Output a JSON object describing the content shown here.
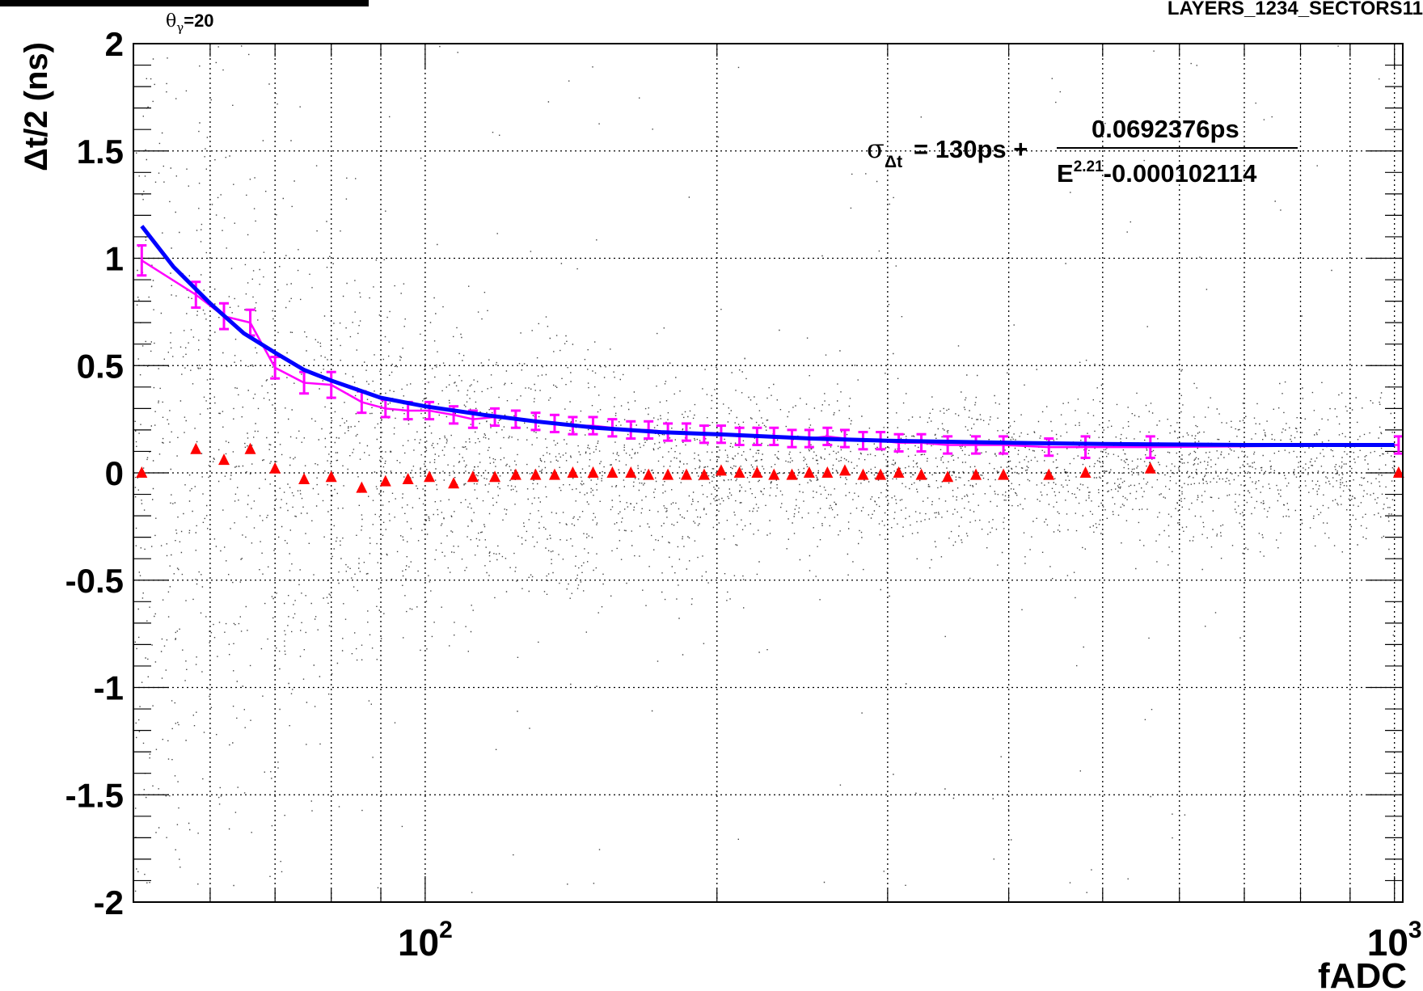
{
  "chart_data": {
    "type": "scatter",
    "header_left": "θγ=20",
    "header_right": "LAYERS_1234_SECTORS11",
    "xlabel": "fADC",
    "ylabel": "Δt/2 (ns)",
    "xscale": "log",
    "xlim": [
      50,
      1020
    ],
    "ylim": [
      -2,
      2
    ],
    "grid": true,
    "x_tick_labels": [
      {
        "base": "10",
        "exp": "2",
        "value": 100
      },
      {
        "base": "10",
        "exp": "3",
        "value": 1000
      }
    ],
    "y_ticks": [
      -2,
      -1.5,
      -1,
      -0.5,
      0,
      0.5,
      1,
      1.5,
      2
    ],
    "y_tick_labels": [
      "-2",
      "-1.5",
      "-1",
      "-0.5",
      "0",
      "0.5",
      "1",
      "1.5",
      "2"
    ],
    "formula": {
      "lhs": "σ",
      "lhs_sub": "Δt",
      "middle": "= 130ps +",
      "numerator": "0.0692376ps",
      "denominator_base": "E",
      "denominator_exp": "2.21",
      "denominator_rest": "-0.000102114"
    },
    "colors": {
      "sigma": "#ff00ff",
      "fit": "#0000ff",
      "mean": "#ff0000",
      "scatter": "#000000",
      "grid": "#000000"
    },
    "series": [
      {
        "style": "magenta error bars with connecting line",
        "x": [
          51,
          58,
          62,
          66,
          70,
          75,
          80,
          86,
          91,
          96,
          101,
          107,
          112,
          118,
          124,
          130,
          136,
          142,
          149,
          156,
          163,
          170,
          178,
          186,
          194,
          202,
          211,
          220,
          229,
          239,
          249,
          260,
          271,
          283,
          295,
          308,
          325,
          346,
          370,
          395,
          440,
          480,
          560,
          1010
        ],
        "y": [
          0.99,
          0.83,
          0.73,
          0.7,
          0.49,
          0.42,
          0.41,
          0.33,
          0.3,
          0.29,
          0.29,
          0.27,
          0.25,
          0.26,
          0.25,
          0.24,
          0.23,
          0.22,
          0.22,
          0.21,
          0.2,
          0.2,
          0.19,
          0.19,
          0.18,
          0.18,
          0.17,
          0.17,
          0.17,
          0.16,
          0.16,
          0.17,
          0.16,
          0.15,
          0.15,
          0.14,
          0.14,
          0.13,
          0.13,
          0.13,
          0.12,
          0.12,
          0.12,
          0.13
        ],
        "err": [
          0.07,
          0.06,
          0.06,
          0.06,
          0.05,
          0.05,
          0.06,
          0.05,
          0.04,
          0.04,
          0.04,
          0.04,
          0.04,
          0.04,
          0.04,
          0.04,
          0.04,
          0.04,
          0.04,
          0.04,
          0.04,
          0.04,
          0.04,
          0.04,
          0.04,
          0.04,
          0.04,
          0.04,
          0.04,
          0.04,
          0.04,
          0.04,
          0.04,
          0.04,
          0.04,
          0.04,
          0.04,
          0.04,
          0.04,
          0.04,
          0.04,
          0.05,
          0.05,
          0.04
        ]
      },
      {
        "style": "blue fit curve",
        "x": [
          51,
          55,
          60,
          65,
          70,
          75,
          80,
          90,
          100,
          115,
          130,
          150,
          175,
          200,
          250,
          300,
          400,
          500,
          700,
          1000
        ],
        "y": [
          1.15,
          0.96,
          0.79,
          0.65,
          0.56,
          0.48,
          0.43,
          0.35,
          0.31,
          0.27,
          0.24,
          0.21,
          0.19,
          0.18,
          0.16,
          0.15,
          0.14,
          0.135,
          0.13,
          0.13
        ]
      },
      {
        "style": "red triangle markers",
        "x": [
          51,
          58,
          62,
          66,
          70,
          75,
          80,
          86,
          91,
          96,
          101,
          107,
          112,
          118,
          124,
          130,
          136,
          142,
          149,
          156,
          163,
          170,
          178,
          186,
          194,
          202,
          211,
          220,
          229,
          239,
          249,
          260,
          271,
          283,
          295,
          308,
          325,
          346,
          370,
          395,
          440,
          480,
          560,
          1010
        ],
        "y": [
          0.0,
          0.11,
          0.06,
          0.11,
          0.02,
          -0.03,
          -0.02,
          -0.07,
          -0.04,
          -0.03,
          -0.02,
          -0.05,
          -0.02,
          -0.02,
          -0.01,
          -0.01,
          -0.01,
          0.0,
          0.0,
          0.0,
          0.0,
          -0.01,
          -0.01,
          -0.01,
          -0.01,
          0.01,
          0.0,
          0.0,
          -0.01,
          -0.01,
          0.0,
          0.0,
          0.01,
          -0.01,
          -0.01,
          0.0,
          -0.01,
          -0.02,
          -0.01,
          -0.01,
          -0.01,
          0.0,
          0.02,
          0.0
        ]
      }
    ]
  }
}
